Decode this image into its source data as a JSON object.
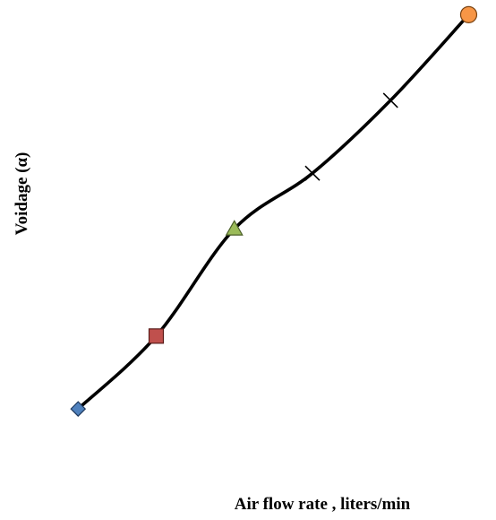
{
  "chart_data": {
    "type": "line",
    "title": "",
    "xlabel": "Air flow rate , liters/min",
    "ylabel": "Voidage (α)",
    "grid": false,
    "axes_visible": false,
    "ticks_visible": false,
    "line_color": "#000000",
    "x": [
      1,
      2,
      3,
      4,
      5,
      6
    ],
    "y": [
      0.05,
      0.22,
      0.47,
      0.6,
      0.77,
      0.97
    ],
    "ylim": [
      0,
      1
    ],
    "xlim": [
      0,
      6.35
    ],
    "points": [
      {
        "marker": "diamond",
        "color": "#4f81bd"
      },
      {
        "marker": "square",
        "color": "#c0504d"
      },
      {
        "marker": "triangle",
        "color": "#9bbb59"
      },
      {
        "marker": "x",
        "color": "#000000"
      },
      {
        "marker": "x",
        "color": "#000000"
      },
      {
        "marker": "circle",
        "color": "#f79646"
      }
    ]
  }
}
